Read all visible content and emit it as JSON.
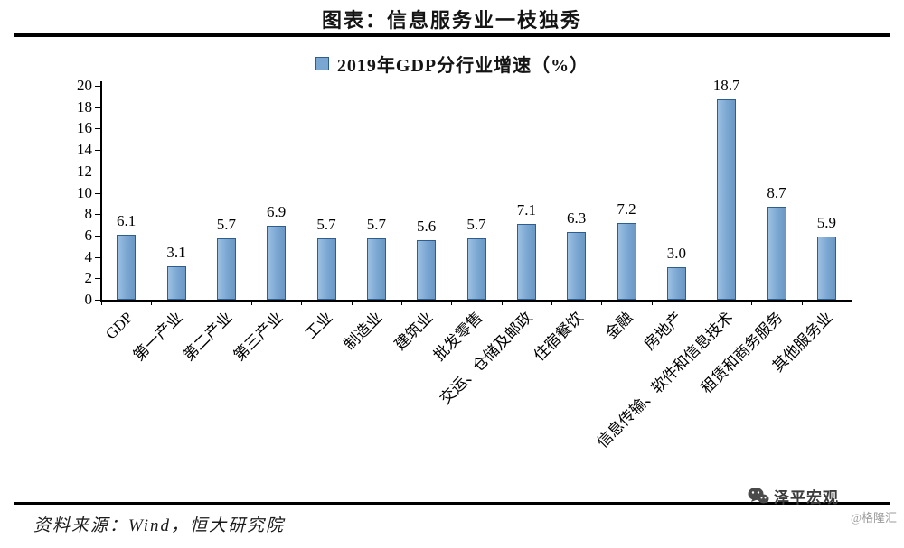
{
  "page": {
    "title": "图表：信息服务业一枝独秀",
    "source": "资料来源：Wind，恒大研究院",
    "watermark_brand": "泽平宏观",
    "watermark_site": "@格隆汇"
  },
  "chart_data": {
    "type": "bar",
    "title": "2019年GDP分行业增速（%）",
    "categories": [
      "GDP",
      "第一产业",
      "第二产业",
      "第三产业",
      "工业",
      "制造业",
      "建筑业",
      "批发零售",
      "交运、仓储及邮政",
      "住宿餐饮",
      "金融",
      "房地产",
      "信息传输、软件和信息技术",
      "租赁和商务服务",
      "其他服务业"
    ],
    "values": [
      6.1,
      3.1,
      5.7,
      6.9,
      5.7,
      5.7,
      5.6,
      5.7,
      7.1,
      6.3,
      7.2,
      3.0,
      18.7,
      8.7,
      5.9
    ],
    "ylim": [
      0,
      20
    ],
    "ytick_step": 2,
    "grid": false,
    "legend_position": "top",
    "value_label_decimals": 1,
    "bar_color": "#7aa6d2",
    "bar_border": "#2e5e8e"
  }
}
